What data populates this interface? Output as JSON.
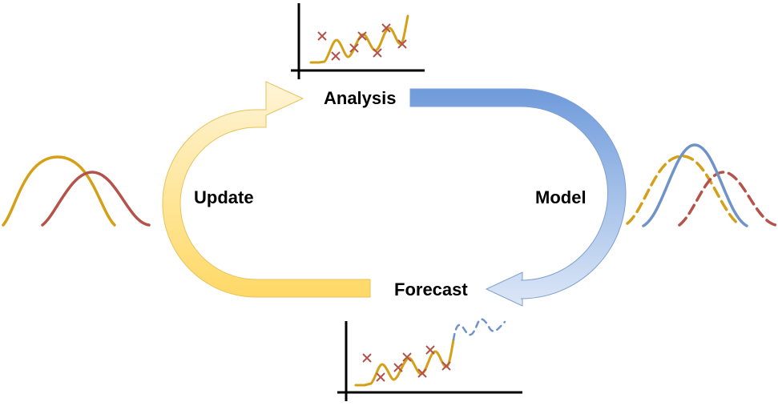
{
  "labels": {
    "analysis": "Analysis",
    "forecast": "Forecast",
    "update": "Update",
    "model": "Model"
  },
  "colors": {
    "gold": "#D4A017",
    "red": "#B5534B",
    "blue": "#6F93C8",
    "axis": "#000000",
    "update_arrow_light": "#FFF3CF",
    "update_arrow_dark": "#FFD966",
    "model_arrow_dark": "#6F9BDB",
    "model_arrow_light": "#DAE6F7"
  }
}
